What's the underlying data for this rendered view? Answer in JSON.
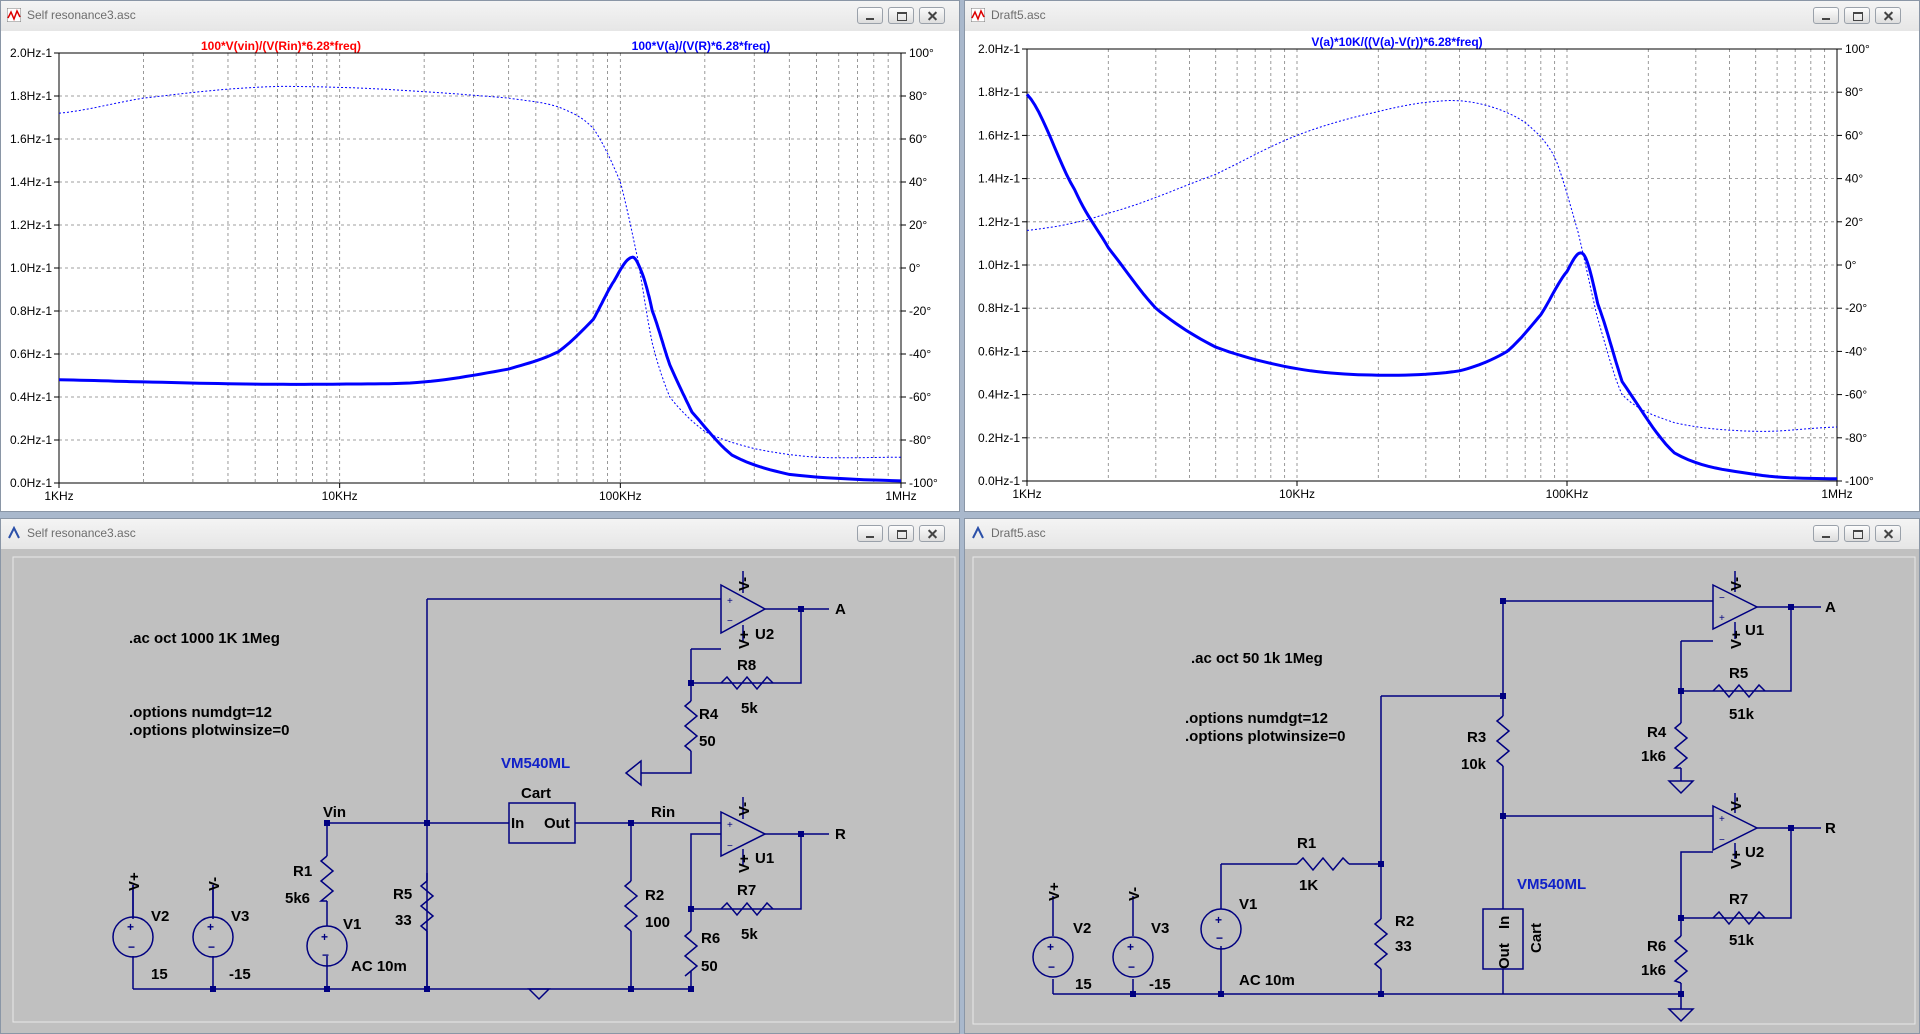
{
  "windows": {
    "plot1": {
      "title": "Self resonance3.asc"
    },
    "plot2": {
      "title": "Draft5.asc"
    },
    "sch1": {
      "title": "Self resonance3.asc"
    },
    "sch2": {
      "title": "Draft5.asc"
    }
  },
  "chart_data": [
    {
      "type": "line",
      "traces": [
        {
          "label": "100*V(vin)/(V(Rin)*6.28*freq)",
          "color": "#ff0000"
        },
        {
          "label": "100*V(a)/(V(R)*6.28*freq)",
          "color": "#0000ff"
        }
      ],
      "x_scale": "log",
      "xlim": [
        "1KHz",
        "1MHz"
      ],
      "x_ticks": [
        "1KHz",
        "10KHz",
        "100KHz",
        "1MHz"
      ],
      "y_ticks_left": [
        "0.0Hz-1",
        "0.2Hz-1",
        "0.4Hz-1",
        "0.6Hz-1",
        "0.8Hz-1",
        "1.0Hz-1",
        "1.2Hz-1",
        "1.4Hz-1",
        "1.6Hz-1",
        "1.8Hz-1",
        "2.0Hz-1"
      ],
      "y_ticks_right": [
        "-100°",
        "-80°",
        "-60°",
        "-40°",
        "-20°",
        "0°",
        "20°",
        "40°",
        "60°",
        "80°",
        "100°"
      ],
      "ylim_left": [
        0,
        2.0
      ],
      "ylim_right": [
        -100,
        100
      ],
      "grid": true,
      "series": [
        {
          "name": "magnitude",
          "axis": "left",
          "style": "solid",
          "x_hz": [
            1000,
            2000,
            5000,
            10000,
            20000,
            40000,
            60000,
            80000,
            95000,
            110000,
            120000,
            130000,
            150000,
            180000,
            250000,
            400000,
            1000000
          ],
          "y": [
            0.48,
            0.47,
            0.46,
            0.46,
            0.47,
            0.53,
            0.61,
            0.76,
            0.94,
            1.05,
            0.97,
            0.8,
            0.55,
            0.33,
            0.13,
            0.04,
            0.01
          ]
        },
        {
          "name": "phase",
          "axis": "right",
          "style": "dotted",
          "x_hz": [
            1000,
            2000,
            5000,
            10000,
            20000,
            40000,
            60000,
            80000,
            100000,
            115000,
            130000,
            150000,
            200000,
            300000,
            500000,
            1000000
          ],
          "y": [
            72,
            79,
            84,
            84,
            82,
            79,
            75,
            65,
            40,
            5,
            -35,
            -60,
            -76,
            -84,
            -88,
            -88
          ]
        }
      ]
    },
    {
      "type": "line",
      "traces": [
        {
          "label": "V(a)*10K/((V(a)-V(r))*6.28*freq)",
          "color": "#0000ff"
        }
      ],
      "x_scale": "log",
      "xlim": [
        "1KHz",
        "1MHz"
      ],
      "x_ticks": [
        "1KHz",
        "10KHz",
        "100KHz",
        "1MHz"
      ],
      "y_ticks_left": [
        "0.0Hz-1",
        "0.2Hz-1",
        "0.4Hz-1",
        "0.6Hz-1",
        "0.8Hz-1",
        "1.0Hz-1",
        "1.2Hz-1",
        "1.4Hz-1",
        "1.6Hz-1",
        "1.8Hz-1",
        "2.0Hz-1"
      ],
      "y_ticks_right": [
        "-100°",
        "-80°",
        "-60°",
        "-40°",
        "-20°",
        "0°",
        "20°",
        "40°",
        "60°",
        "80°",
        "100°"
      ],
      "ylim_left": [
        0,
        2.0
      ],
      "ylim_right": [
        -100,
        100
      ],
      "grid": true,
      "series": [
        {
          "name": "magnitude",
          "axis": "left",
          "style": "solid",
          "x_hz": [
            1000,
            1500,
            2000,
            3000,
            5000,
            10000,
            20000,
            40000,
            60000,
            80000,
            100000,
            115000,
            130000,
            160000,
            250000,
            500000,
            1000000
          ],
          "y": [
            1.79,
            1.35,
            1.08,
            0.8,
            0.62,
            0.52,
            0.49,
            0.51,
            0.6,
            0.77,
            0.97,
            1.05,
            0.82,
            0.46,
            0.13,
            0.03,
            0.01
          ]
        },
        {
          "name": "phase",
          "axis": "right",
          "style": "dotted",
          "x_hz": [
            1000,
            2000,
            5000,
            10000,
            20000,
            35000,
            50000,
            70000,
            90000,
            110000,
            130000,
            160000,
            250000,
            500000,
            1000000
          ],
          "y": [
            16,
            24,
            42,
            60,
            71,
            76,
            74,
            66,
            50,
            15,
            -25,
            -60,
            -73,
            -77,
            -75
          ]
        }
      ]
    }
  ],
  "schematic1": {
    "directive1": ".ac oct 1000 1K 1Meg",
    "directive2": ".options numdgt=12",
    "directive3": ".options plotwinsize=0",
    "block": {
      "model": "VM540ML",
      "name": "Cart",
      "pin_in": "In",
      "pin_out": "Out"
    },
    "nets": {
      "vin": "Vin",
      "rin": "Rin",
      "a": "A",
      "r": "R"
    },
    "opamps": {
      "u2": "U2",
      "u1": "U1",
      "vminus": "V-",
      "vplus": "V+"
    },
    "r8": {
      "ref": "R8",
      "val": "5k"
    },
    "r4": {
      "ref": "R4",
      "val": "50"
    },
    "r1": {
      "ref": "R1",
      "val": "5k6"
    },
    "r5": {
      "ref": "R5",
      "val": "33"
    },
    "r2": {
      "ref": "R2",
      "val": "100"
    },
    "r7": {
      "ref": "R7",
      "val": "5k"
    },
    "r6": {
      "ref": "R6",
      "val": "50"
    },
    "v2": {
      "ref": "V2",
      "val": "15",
      "rail": "V+"
    },
    "v3": {
      "ref": "V3",
      "val": "-15",
      "rail": "V-"
    },
    "v1": {
      "ref": "V1",
      "val": "AC 10m"
    }
  },
  "schematic2": {
    "directive1": ".ac oct 50 1k 1Meg",
    "directive2": ".options numdgt=12",
    "directive3": ".options plotwinsize=0",
    "block": {
      "model": "VM540ML",
      "name": "Cart",
      "pin_in": "In",
      "pin_out": "Out"
    },
    "nets": {
      "a": "A",
      "r": "R"
    },
    "opamps": {
      "u1": "U1",
      "u2": "U2",
      "vminus": "V-",
      "vplus": "V+"
    },
    "r5": {
      "ref": "R5",
      "val": "51k"
    },
    "r4": {
      "ref": "R4",
      "val": "1k6"
    },
    "r3": {
      "ref": "R3",
      "val": "10k"
    },
    "r1": {
      "ref": "R1",
      "val": "1K"
    },
    "r2": {
      "ref": "R2",
      "val": "33"
    },
    "r7": {
      "ref": "R7",
      "val": "51k"
    },
    "r6": {
      "ref": "R6",
      "val": "1k6"
    },
    "v2": {
      "ref": "V2",
      "val": "15",
      "rail": "V+"
    },
    "v3": {
      "ref": "V3",
      "val": "-15",
      "rail": "V-"
    },
    "v1": {
      "ref": "V1",
      "val": "AC 10m"
    }
  }
}
